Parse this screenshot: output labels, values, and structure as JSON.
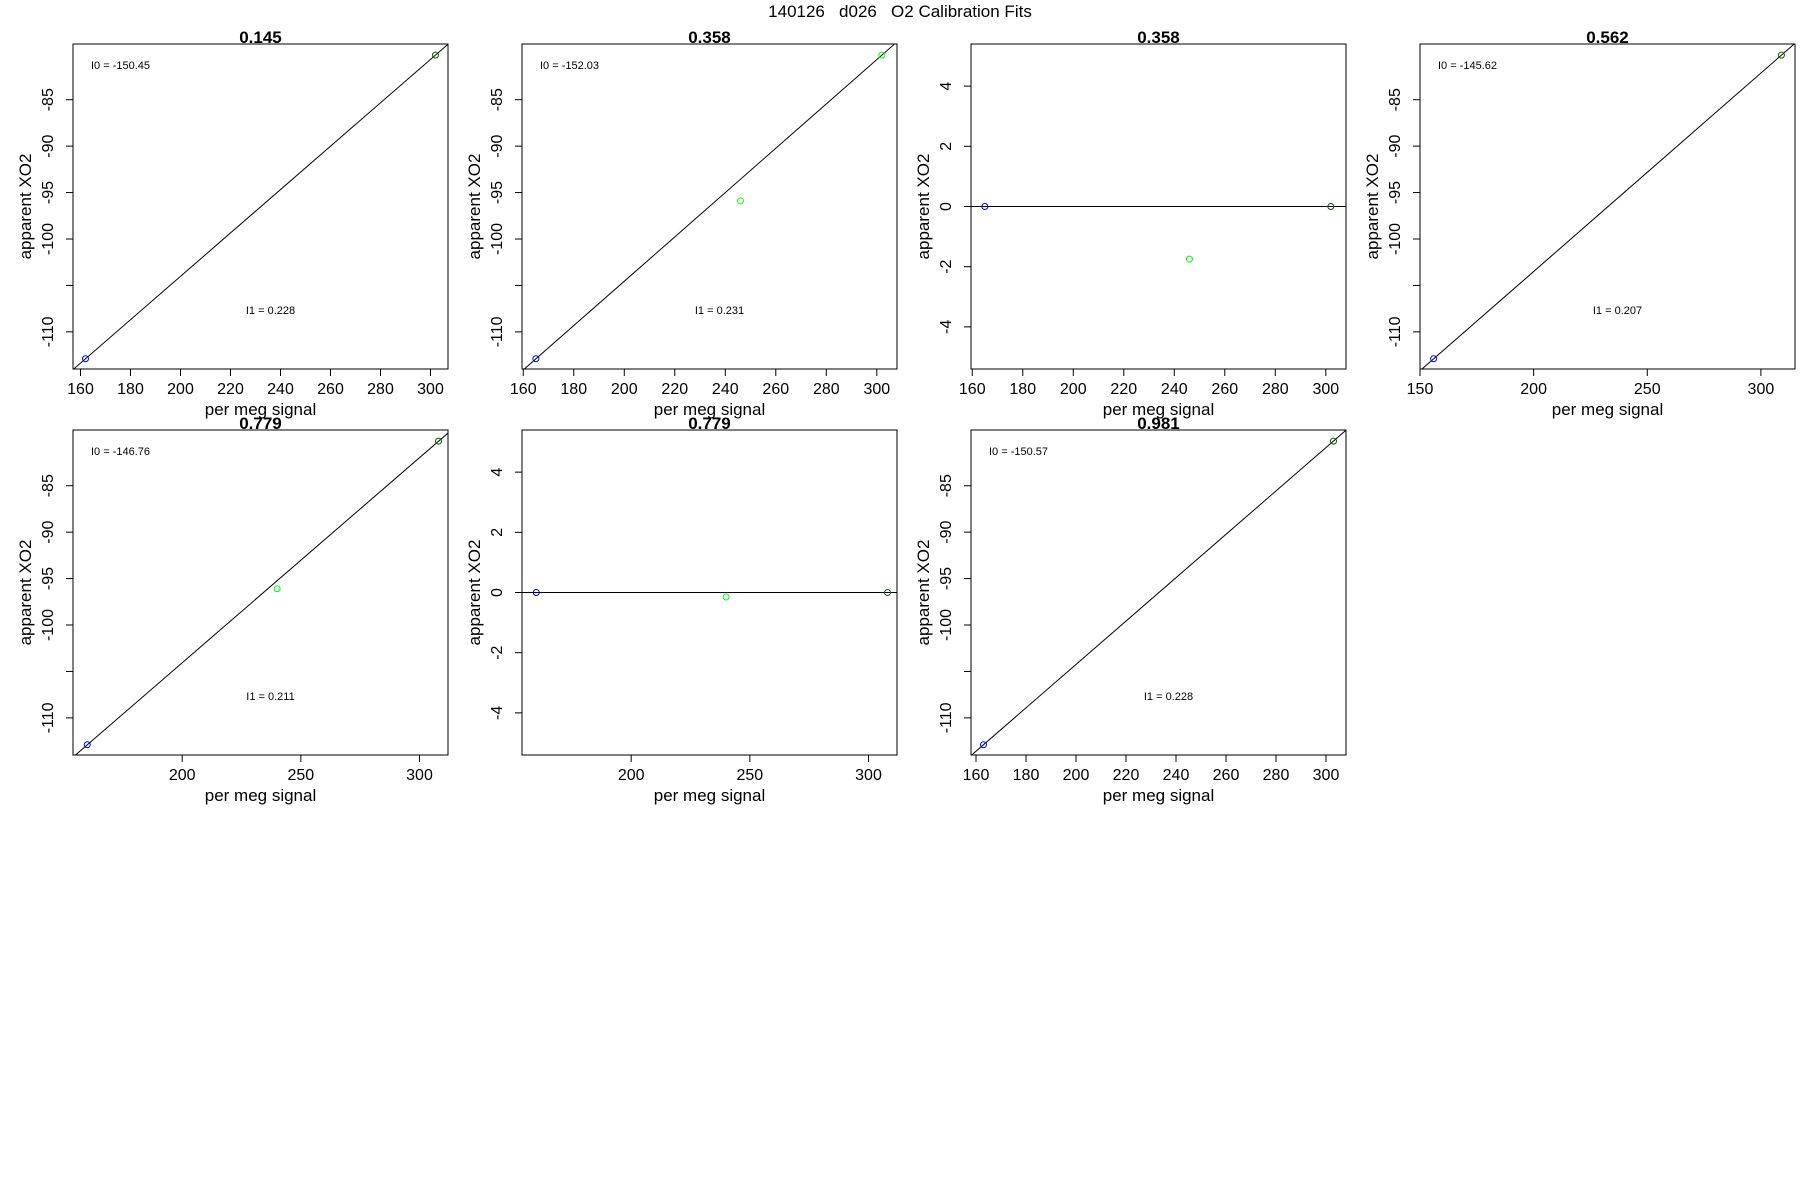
{
  "page": {
    "title": "140126   d026   O2 Calibration Fits"
  },
  "colors": {
    "low": "#0000ff",
    "mid": "#00ff00",
    "high": "#006400",
    "line": "#000000"
  },
  "chart_data": [
    {
      "type": "scatter",
      "title": "0.145",
      "xlabel": "per meg signal",
      "ylabel": "apparent XO2",
      "xlim": [
        157,
        307
      ],
      "ylim": [
        -114,
        -79
      ],
      "xticks": [
        160,
        180,
        200,
        220,
        240,
        260,
        280,
        300
      ],
      "yticks": [
        -85,
        -90,
        -95,
        -100,
        -105,
        -110
      ],
      "ytick_labels": [
        "-85",
        "-90",
        "-95",
        "-100",
        "",
        "-110"
      ],
      "points": [
        {
          "x": 162.0,
          "y": -112.9,
          "color": "low"
        },
        {
          "x": 302.0,
          "y": -80.2,
          "color": "high"
        }
      ],
      "fit_line": {
        "slope": 0.2336,
        "intercept": -150.74
      },
      "annotations": [
        {
          "text": "I0 =  -150.45",
          "pos": "top-left"
        },
        {
          "text": "I1 =  0.228",
          "pos": "lower-middle"
        }
      ]
    },
    {
      "type": "scatter",
      "title": "0.358",
      "xlabel": "per meg signal",
      "ylabel": "apparent XO2",
      "xlim": [
        159.5,
        308
      ],
      "ylim": [
        -114,
        -79
      ],
      "xticks": [
        160,
        180,
        200,
        220,
        240,
        260,
        280,
        300
      ],
      "yticks": [
        -85,
        -90,
        -95,
        -100,
        -105,
        -110
      ],
      "ytick_labels": [
        "-85",
        "-90",
        "-95",
        "-100",
        "",
        "-110"
      ],
      "points": [
        {
          "x": 165.0,
          "y": -112.9,
          "color": "low"
        },
        {
          "x": 246.0,
          "y": -95.9,
          "color": "mid"
        },
        {
          "x": 302.0,
          "y": -80.2,
          "color": "mid"
        }
      ],
      "fit_line": {
        "slope": 0.2387,
        "intercept": -152.29
      },
      "annotations": [
        {
          "text": "I0 =  -152.03",
          "pos": "top-left"
        },
        {
          "text": "I1 =  0.231",
          "pos": "lower-middle"
        }
      ]
    },
    {
      "type": "scatter",
      "title": "0.358",
      "xlabel": "per meg signal",
      "ylabel": "apparent XO2",
      "xlim": [
        159.5,
        308
      ],
      "ylim": [
        -5.4,
        5.4
      ],
      "xticks": [
        160,
        180,
        200,
        220,
        240,
        260,
        280,
        300
      ],
      "yticks": [
        4,
        2,
        0,
        -2,
        -4
      ],
      "ytick_labels": [
        "4",
        "2",
        "0",
        "-2",
        "-4"
      ],
      "points": [
        {
          "x": 165.0,
          "y": 0.0,
          "color": "low"
        },
        {
          "x": 246.0,
          "y": -1.75,
          "color": "mid"
        },
        {
          "x": 302.0,
          "y": 0.0,
          "color": "high"
        }
      ],
      "fit_line": {
        "slope": 0,
        "intercept": 0
      },
      "annotations": []
    },
    {
      "type": "scatter",
      "title": "0.562",
      "xlabel": "per meg signal",
      "ylabel": "apparent XO2",
      "xlim": [
        150,
        315
      ],
      "ylim": [
        -114,
        -79
      ],
      "xticks": [
        150,
        200,
        250,
        300
      ],
      "yticks": [
        -85,
        -90,
        -95,
        -100,
        -105,
        -110
      ],
      "ytick_labels": [
        "-85",
        "-90",
        "-95",
        "-100",
        "",
        "-110"
      ],
      "points": [
        {
          "x": 156.0,
          "y": -112.9,
          "color": "low"
        },
        {
          "x": 309.0,
          "y": -80.2,
          "color": "high"
        }
      ],
      "fit_line": {
        "slope": 0.2137,
        "intercept": -146.24
      },
      "annotations": [
        {
          "text": "I0 =  -145.62",
          "pos": "top-left"
        },
        {
          "text": "I1 =  0.207",
          "pos": "lower-middle"
        }
      ]
    },
    {
      "type": "scatter",
      "title": "0.779",
      "xlabel": "per meg signal",
      "ylabel": "apparent XO2",
      "xlim": [
        154,
        312
      ],
      "ylim": [
        -114,
        -79
      ],
      "xticks": [
        200,
        250,
        300
      ],
      "yticks": [
        -85,
        -90,
        -95,
        -100,
        -105,
        -110
      ],
      "ytick_labels": [
        "-85",
        "-90",
        "-95",
        "-100",
        "",
        "-110"
      ],
      "points": [
        {
          "x": 160.0,
          "y": -112.9,
          "color": "low"
        },
        {
          "x": 240.0,
          "y": -96.1,
          "color": "mid"
        },
        {
          "x": 308.0,
          "y": -80.2,
          "color": "high"
        }
      ],
      "fit_line": {
        "slope": 0.2209,
        "intercept": -148.25
      },
      "annotations": [
        {
          "text": "I0 =  -146.76",
          "pos": "top-left"
        },
        {
          "text": "I1 =  0.211",
          "pos": "lower-middle"
        }
      ]
    },
    {
      "type": "scatter",
      "title": "0.779",
      "xlabel": "per meg signal",
      "ylabel": "apparent XO2",
      "xlim": [
        154,
        312
      ],
      "ylim": [
        -5.4,
        5.4
      ],
      "xticks": [
        200,
        250,
        300
      ],
      "yticks": [
        4,
        2,
        0,
        -2,
        -4
      ],
      "ytick_labels": [
        "4",
        "2",
        "0",
        "-2",
        "-4"
      ],
      "points": [
        {
          "x": 160.0,
          "y": 0.0,
          "color": "low"
        },
        {
          "x": 240.0,
          "y": -0.15,
          "color": "mid"
        },
        {
          "x": 308.0,
          "y": 0.0,
          "color": "high"
        }
      ],
      "fit_line": {
        "slope": 0,
        "intercept": 0
      },
      "annotations": []
    },
    {
      "type": "scatter",
      "title": "0.981",
      "xlabel": "per meg signal",
      "ylabel": "apparent XO2",
      "xlim": [
        158,
        308
      ],
      "ylim": [
        -114,
        -79
      ],
      "xticks": [
        160,
        180,
        200,
        220,
        240,
        260,
        280,
        300
      ],
      "yticks": [
        -85,
        -90,
        -95,
        -100,
        -105,
        -110
      ],
      "ytick_labels": [
        "-85",
        "-90",
        "-95",
        "-100",
        "",
        "-110"
      ],
      "points": [
        {
          "x": 163.0,
          "y": -112.9,
          "color": "low"
        },
        {
          "x": 303.0,
          "y": -80.2,
          "color": "high"
        }
      ],
      "fit_line": {
        "slope": 0.2336,
        "intercept": -150.97
      },
      "annotations": [
        {
          "text": "I0 =  -150.57",
          "pos": "top-left"
        },
        {
          "text": "I1 =  0.228",
          "pos": "lower-middle"
        }
      ]
    }
  ]
}
